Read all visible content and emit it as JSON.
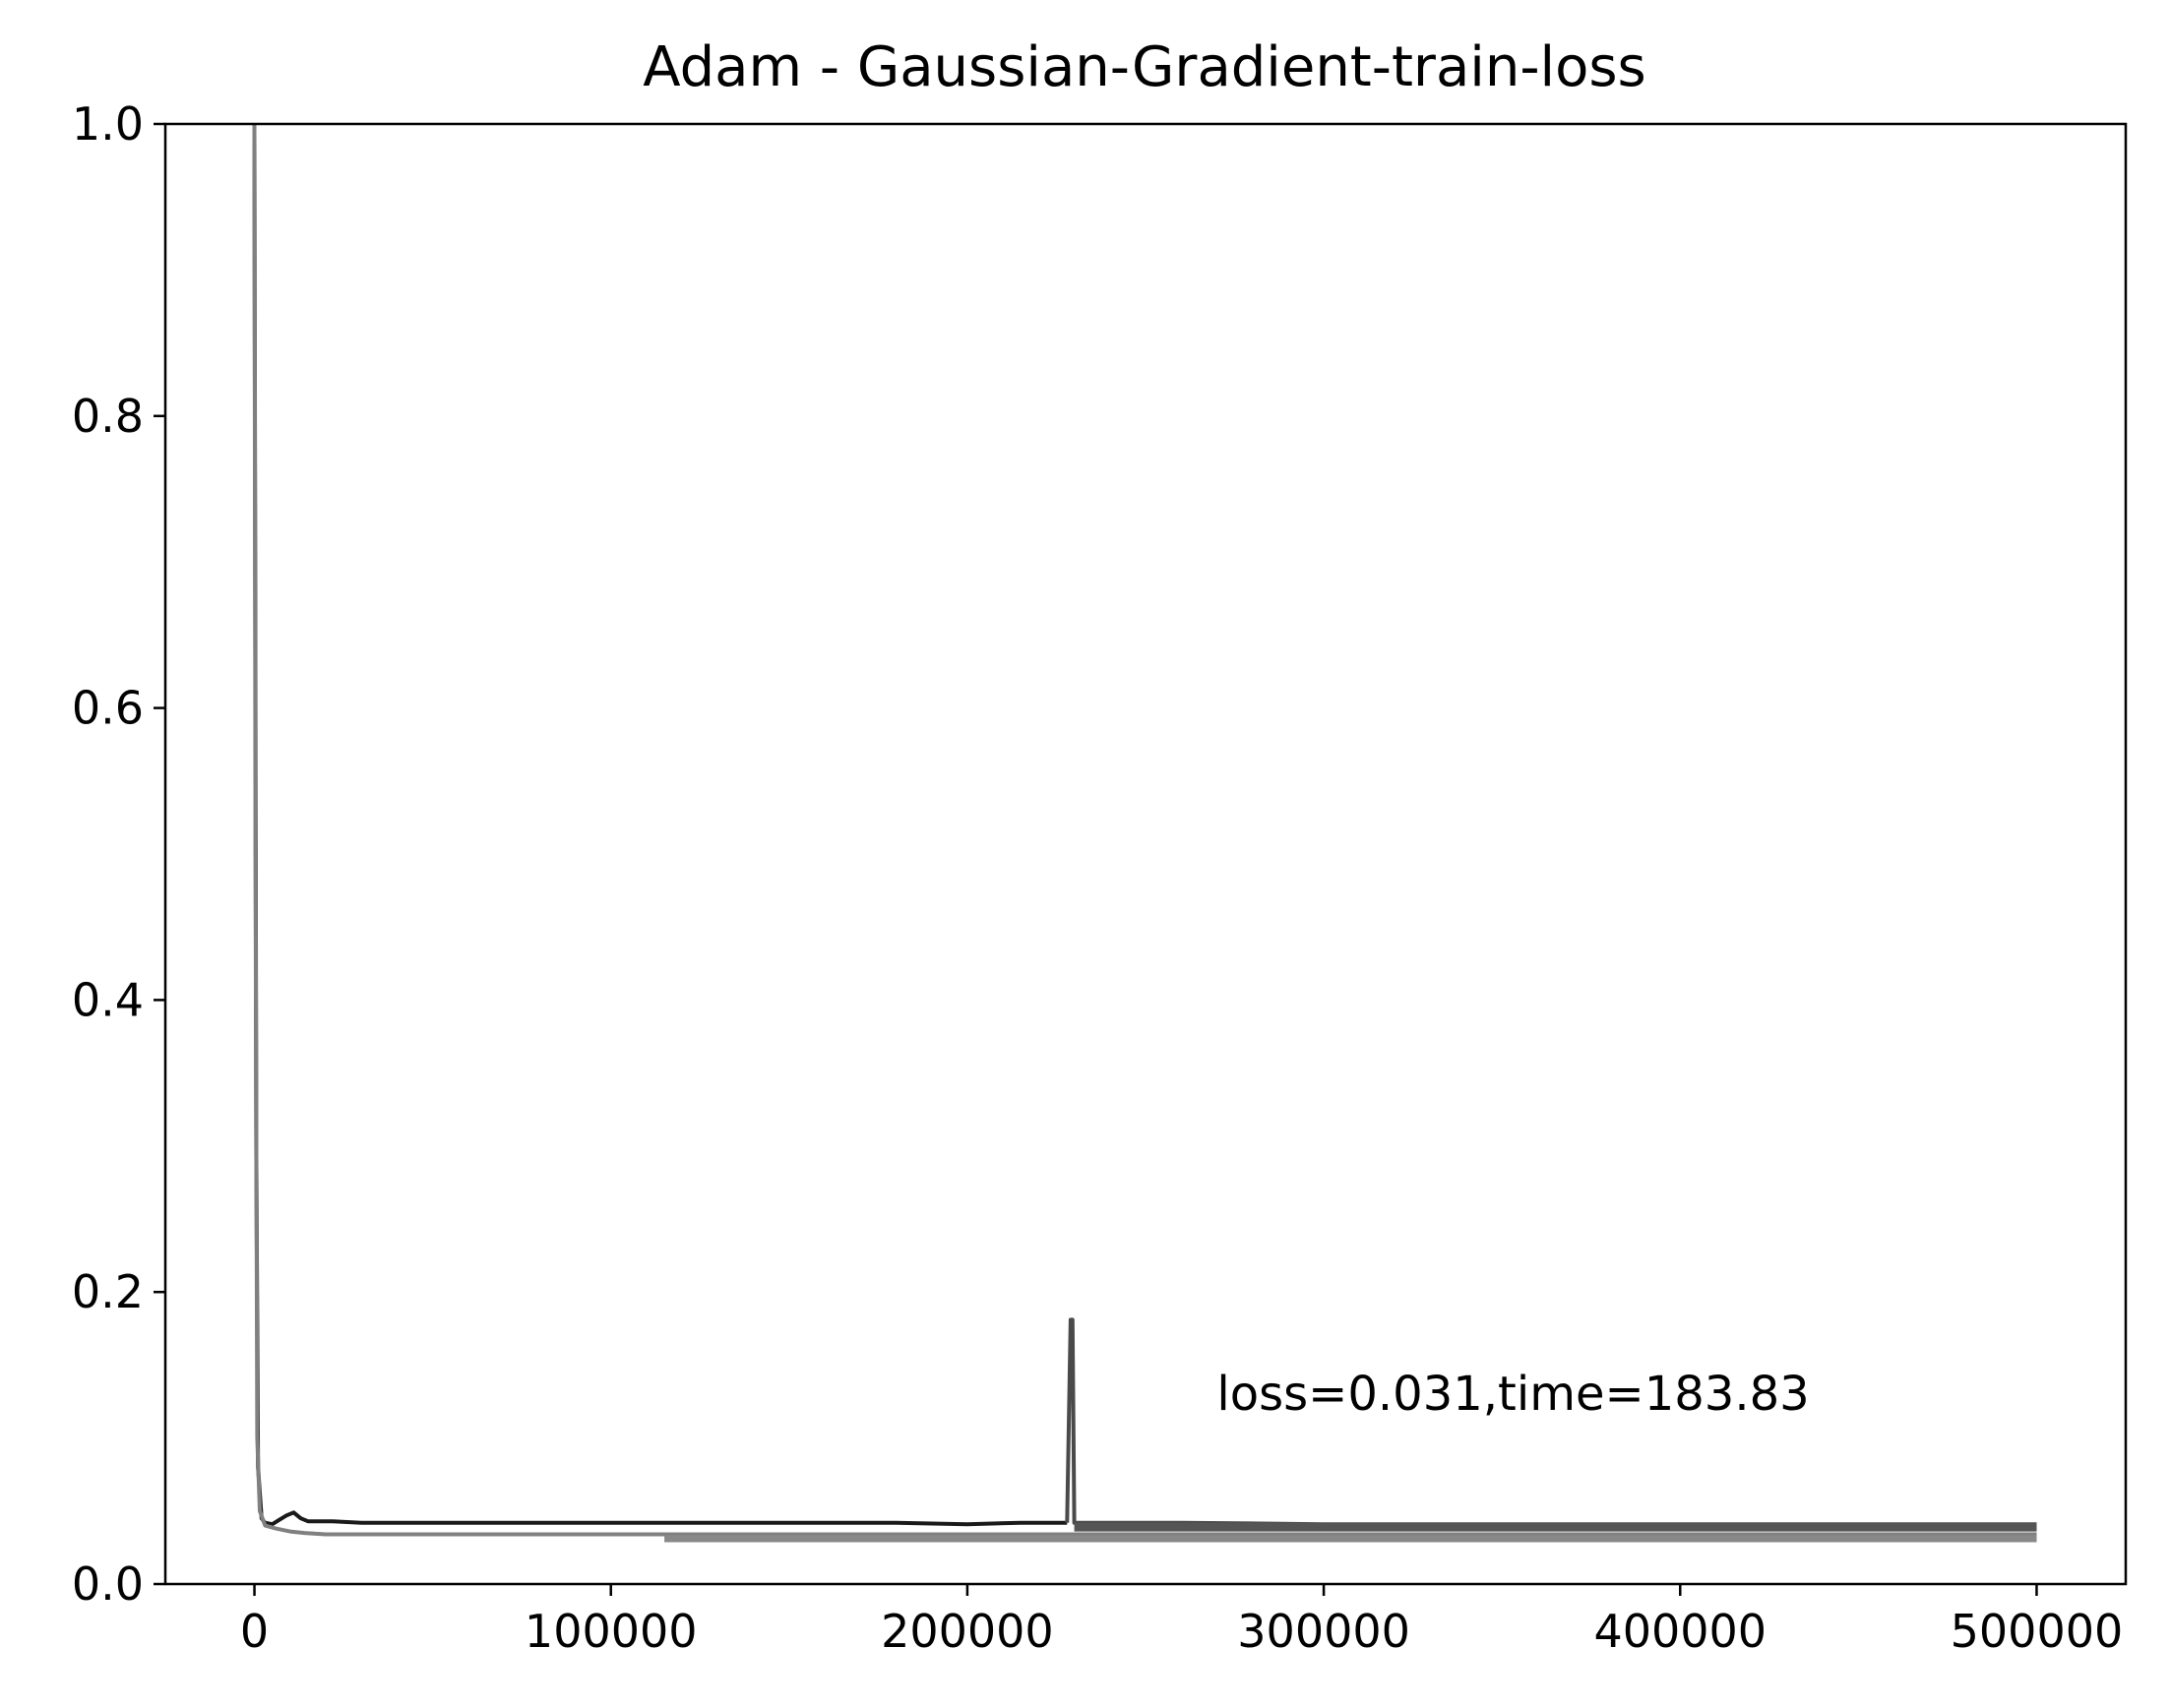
{
  "chart_data": {
    "type": "line",
    "title": "Adam - Gaussian-Gradient-train-loss",
    "xlabel": "",
    "ylabel": "",
    "xlim": [
      -25000,
      525000
    ],
    "ylim": [
      0.0,
      1.0
    ],
    "grid": false,
    "x_ticks": [
      0,
      100000,
      200000,
      300000,
      400000,
      500000
    ],
    "x_tick_labels": [
      "0",
      "100000",
      "200000",
      "300000",
      "400000",
      "500000"
    ],
    "y_ticks": [
      0.0,
      0.2,
      0.4,
      0.6,
      0.8,
      1.0
    ],
    "y_tick_labels": [
      "0.0",
      "0.2",
      "0.4",
      "0.6",
      "0.8",
      "1.0"
    ],
    "annotation": {
      "text": "loss=0.031,time=183.83",
      "x": 270000,
      "y": 0.13
    },
    "series": [
      {
        "color": "#1a1a1a",
        "width": 4,
        "x": [
          0,
          500,
          1000,
          2000,
          3000,
          5000,
          7000,
          9000,
          11000,
          13000,
          15000,
          18000,
          22000,
          30000,
          40000,
          50000,
          60000,
          70000,
          80000,
          90000,
          100000,
          120000,
          140000,
          160000,
          180000,
          200000,
          215000,
          228000
        ],
        "y": [
          1.0,
          0.3,
          0.08,
          0.045,
          0.042,
          0.041,
          0.044,
          0.047,
          0.049,
          0.045,
          0.043,
          0.043,
          0.043,
          0.042,
          0.042,
          0.042,
          0.042,
          0.042,
          0.042,
          0.042,
          0.042,
          0.042,
          0.042,
          0.042,
          0.042,
          0.041,
          0.042,
          0.042
        ]
      },
      {
        "color": "#4a4a4a",
        "width": 4,
        "x": [
          228000,
          229000,
          229500,
          230000,
          240000,
          260000,
          300000,
          340000,
          380000,
          420000,
          460000,
          500000
        ],
        "y": [
          0.042,
          0.181,
          0.181,
          0.042,
          0.042,
          0.042,
          0.041,
          0.041,
          0.041,
          0.041,
          0.041,
          0.041
        ]
      },
      {
        "color": "#555555",
        "width": 9,
        "x": [
          230000,
          260000,
          300000,
          340000,
          380000,
          420000,
          460000,
          500000
        ],
        "y": [
          0.039,
          0.039,
          0.039,
          0.039,
          0.039,
          0.039,
          0.039,
          0.039
        ]
      },
      {
        "color": "#808080",
        "width": 4,
        "x": [
          0,
          300,
          800,
          1500,
          3000,
          6000,
          10000,
          14000,
          20000,
          40000,
          80000,
          115000,
          160000,
          200000,
          260000,
          320000,
          380000,
          440000,
          500000
        ],
        "y": [
          1.0,
          0.5,
          0.1,
          0.05,
          0.04,
          0.038,
          0.036,
          0.035,
          0.034,
          0.034,
          0.034,
          0.034,
          0.034,
          0.034,
          0.034,
          0.034,
          0.034,
          0.034,
          0.034
        ]
      },
      {
        "color": "#888888",
        "width": 7,
        "x": [
          115000,
          200000,
          300000,
          400000,
          500000
        ],
        "y": [
          0.031,
          0.031,
          0.031,
          0.031,
          0.031
        ]
      }
    ]
  }
}
